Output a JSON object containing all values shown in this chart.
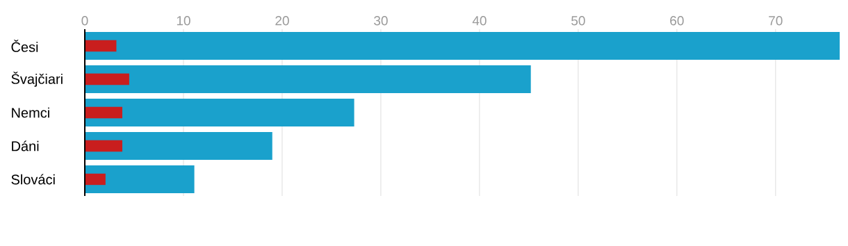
{
  "chart_data": {
    "type": "bar",
    "orientation": "horizontal",
    "categories": [
      "Česi",
      "Švajčiari",
      "Nemci",
      "Dáni",
      "Slováci"
    ],
    "series": [
      {
        "color": "#1aa1cc",
        "values": [
          76.5,
          45.2,
          27.3,
          19.0,
          11.1
        ]
      },
      {
        "color": "#c91e1e",
        "values": [
          3.2,
          4.5,
          3.8,
          3.8,
          2.1
        ]
      }
    ],
    "xlim": [
      0,
      76.5
    ],
    "xticks": [
      0,
      10,
      20,
      30,
      40,
      50,
      60,
      70
    ],
    "grid": "x"
  }
}
